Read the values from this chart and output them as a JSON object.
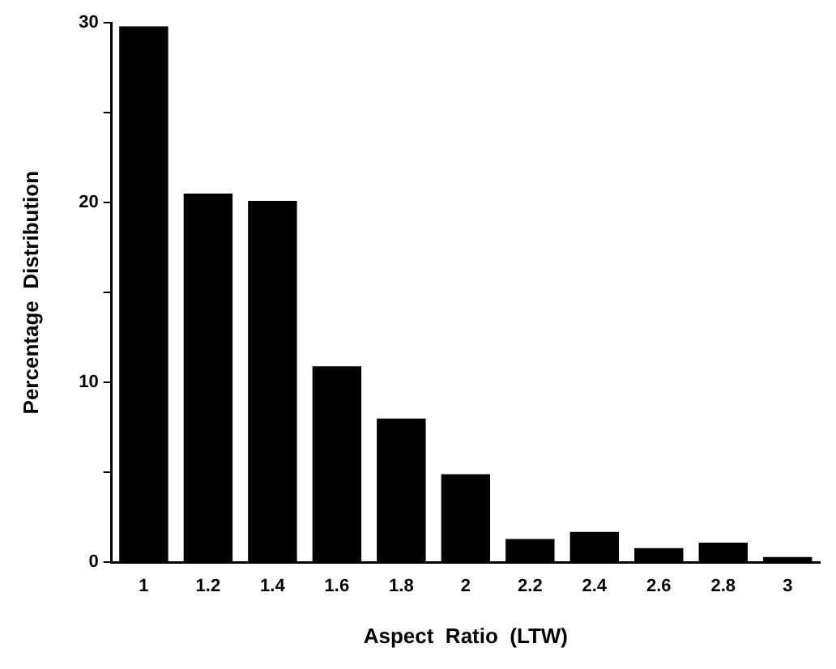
{
  "chart_data": {
    "type": "bar",
    "xlabel": "Aspect  Ratio  (LTW)",
    "ylabel": "Percentage  Distribution",
    "categories": [
      "1",
      "1.2",
      "1.4",
      "1.6",
      "1.8",
      "2",
      "2.2",
      "2.4",
      "2.6",
      "2.8",
      "3"
    ],
    "values": [
      29.8,
      20.5,
      20.1,
      10.9,
      8.0,
      4.9,
      1.3,
      1.7,
      0.8,
      1.1,
      0.3
    ],
    "color": "#000000",
    "ylim": [
      0,
      30
    ],
    "yticks": [
      0,
      {
        "value": 5,
        "label": null
      },
      10,
      {
        "value": 15,
        "label": null
      },
      20,
      {
        "value": 25,
        "label": null
      },
      30
    ],
    "grid": false,
    "legend": false
  }
}
